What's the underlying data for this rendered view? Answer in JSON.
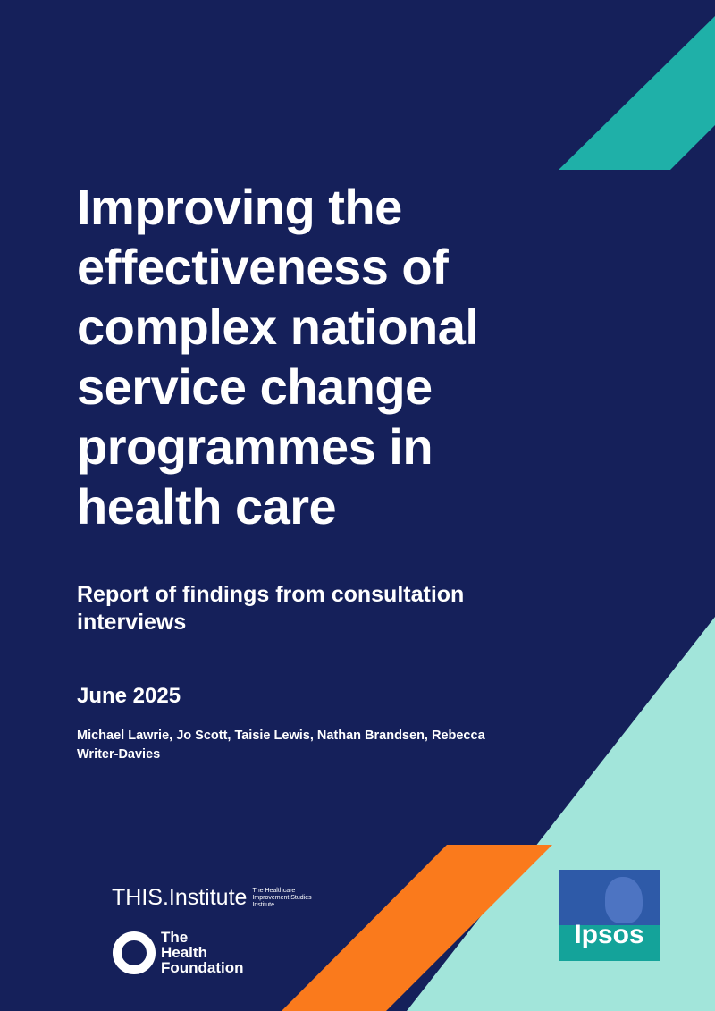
{
  "title_lines": [
    "Improving the",
    "effectiveness of",
    "complex national",
    "service change",
    "programmes in",
    "health care"
  ],
  "subtitle": "Report of findings from consultation interviews",
  "date": "June 2025",
  "authors": "Michael Lawrie, Jo Scott, Taisie Lewis, Nathan Brandsen, Rebecca Writer-Davies",
  "logos": {
    "this_institute": "THIS.Institute",
    "this_institute_sub": "The Healthcare Improvement Studies Institute",
    "health_foundation_lines": [
      "The",
      "Health",
      "Foundation"
    ],
    "ipsos": "Ipsos"
  }
}
